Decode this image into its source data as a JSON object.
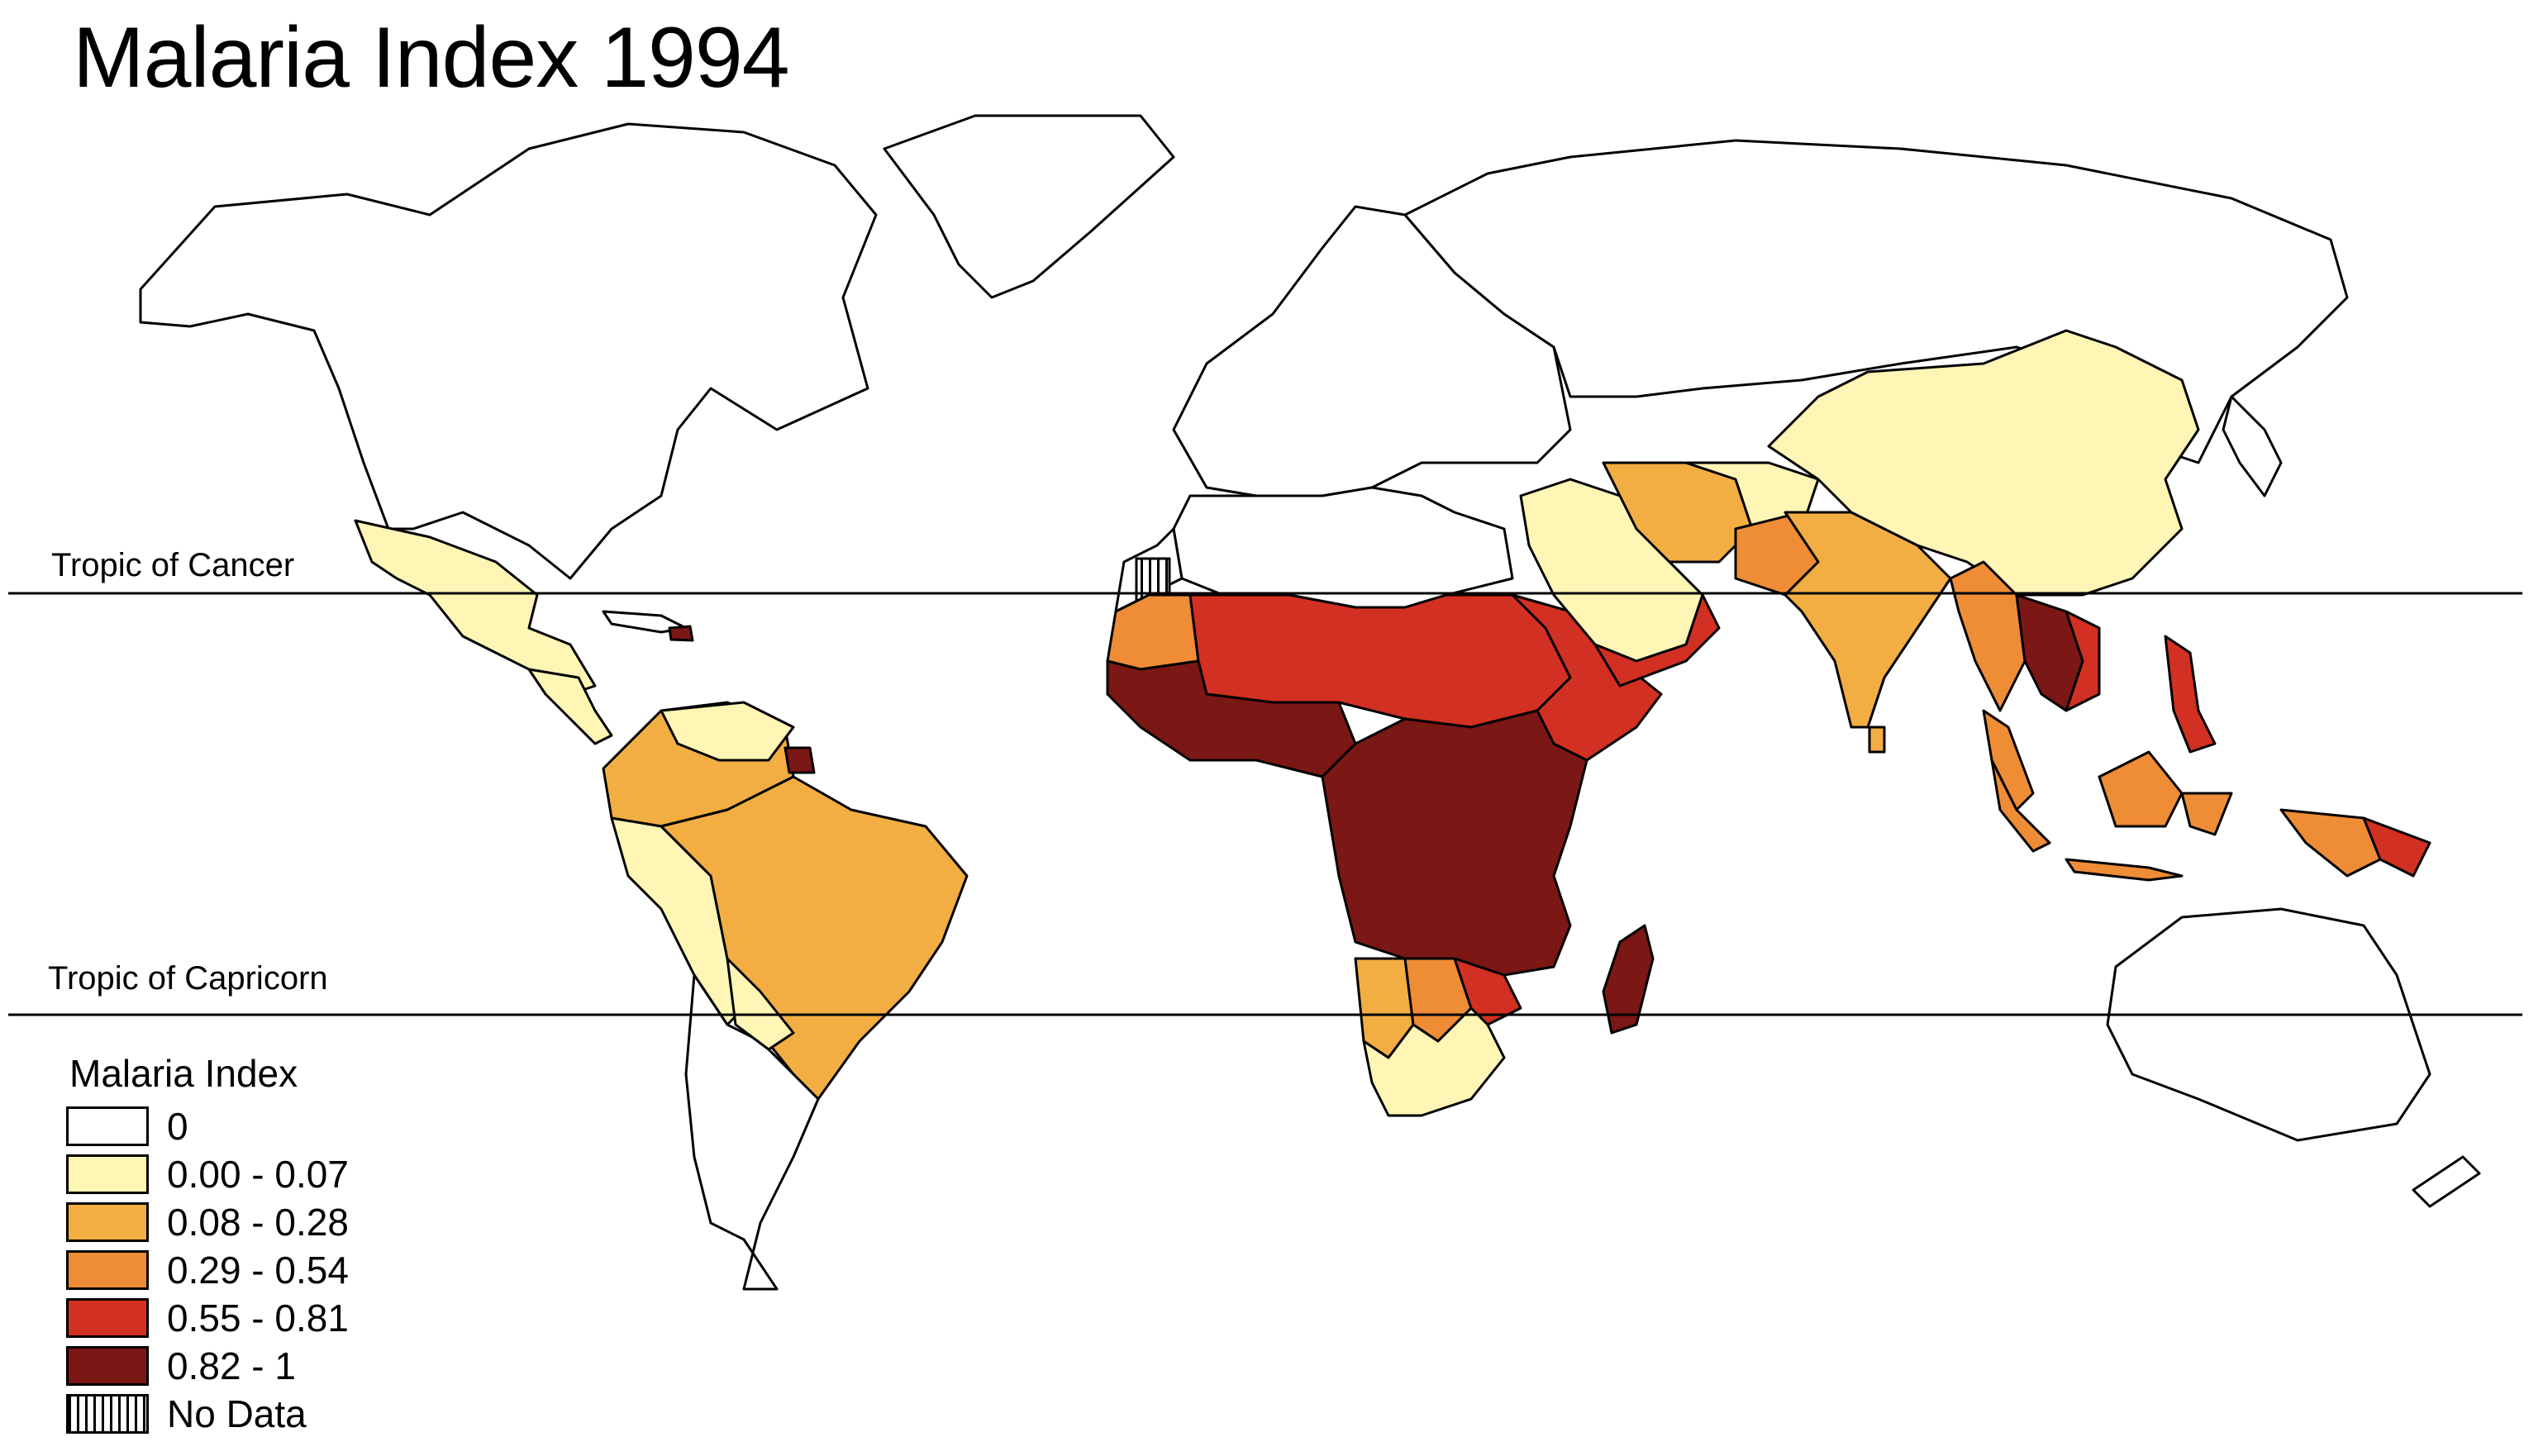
{
  "title": "Malaria Index 1994",
  "tropic_of_cancer": "Tropic of Cancer",
  "tropic_of_capricorn": "Tropic of Capricorn",
  "legend": {
    "title": "Malaria Index",
    "items": [
      {
        "label": "0",
        "color": "#ffffff"
      },
      {
        "label": "0.00 - 0.07",
        "color": "#fff5b4"
      },
      {
        "label": "0.08 - 0.28",
        "color": "#f2ae42"
      },
      {
        "label": "0.29 - 0.54",
        "color": "#ef8c36"
      },
      {
        "label": "0.55 - 0.81",
        "color": "#d23022"
      },
      {
        "label": "0.82 - 1",
        "color": "#7b1714"
      },
      {
        "label": "No Data",
        "color": "hatched"
      }
    ]
  }
}
